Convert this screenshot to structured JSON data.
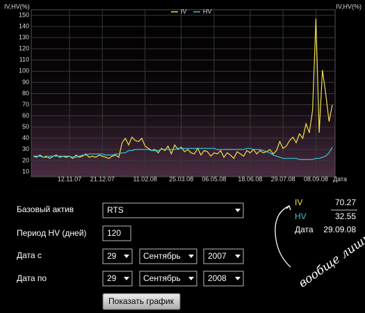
{
  "chart_data": {
    "type": "line",
    "y_label": "IV,HV(%)",
    "y2_label": "IV,HV(%)",
    "x_label": "Дата",
    "categories": [
      null,
      null,
      null,
      null,
      null,
      null,
      null,
      null,
      null,
      null,
      null,
      "12.11.07",
      null,
      null,
      null,
      null,
      null,
      null,
      null,
      null,
      null,
      "21.12.07",
      null,
      null,
      null,
      null,
      null,
      null,
      null,
      null,
      null,
      null,
      null,
      null,
      "11.02.08",
      null,
      null,
      null,
      null,
      null,
      null,
      null,
      null,
      null,
      null,
      "25.03.08",
      null,
      null,
      null,
      null,
      null,
      null,
      null,
      null,
      null,
      "06.05.08",
      null,
      null,
      null,
      null,
      null,
      null,
      null,
      null,
      null,
      null,
      "18.06.08",
      null,
      null,
      null,
      null,
      null,
      null,
      null,
      null,
      null,
      "29.07.08",
      null,
      null,
      null,
      null,
      null,
      null,
      null,
      null,
      null,
      "08.09.08",
      null,
      null,
      null,
      null,
      null
    ],
    "series": [
      {
        "name": "IV",
        "color": "#f2e24a",
        "values": [
          24,
          23,
          25,
          23,
          24,
          22,
          24,
          25,
          23,
          24,
          23,
          24,
          22,
          25,
          23,
          24,
          26,
          23,
          24,
          23,
          25,
          24,
          23,
          22,
          24,
          25,
          23,
          36,
          40,
          34,
          41,
          38,
          37,
          40,
          33,
          31,
          29,
          30,
          27,
          31,
          29,
          33,
          26,
          34,
          30,
          32,
          28,
          30,
          27,
          26,
          31,
          25,
          29,
          28,
          24,
          27,
          26,
          29,
          23,
          27,
          25,
          22,
          28,
          26,
          24,
          29,
          27,
          30,
          26,
          29,
          27,
          28,
          30,
          26,
          29,
          37,
          31,
          33,
          38,
          41,
          36,
          44,
          40,
          53,
          45,
          65,
          147,
          45,
          101,
          80,
          55,
          70
        ]
      },
      {
        "name": "HV",
        "color": "#35c8d8",
        "values": [
          24,
          24,
          24,
          23,
          23,
          24,
          24,
          24,
          24,
          24,
          24,
          24,
          23,
          23,
          24,
          25,
          25,
          26,
          26,
          26,
          26,
          26,
          25,
          25,
          25,
          26,
          26,
          27,
          27,
          29,
          29,
          30,
          30,
          30,
          30,
          30,
          29,
          29,
          29,
          30,
          30,
          30,
          30,
          30,
          31,
          31,
          31,
          31,
          31,
          31,
          31,
          31,
          31,
          31,
          31,
          31,
          30,
          30,
          30,
          30,
          30,
          30,
          30,
          30,
          30,
          31,
          31,
          30,
          30,
          30,
          29,
          28,
          27,
          25,
          24,
          23,
          22,
          22,
          22,
          22,
          22,
          21,
          21,
          21,
          21,
          21,
          22,
          22,
          23,
          24,
          27,
          32
        ]
      }
    ],
    "ylim": [
      10,
      150
    ],
    "yticks": [
      10,
      20,
      30,
      40,
      50,
      60,
      70,
      80,
      90,
      100,
      110,
      120,
      130,
      140,
      150
    ],
    "grid": true
  },
  "form": {
    "asset_label": "Базовый актив",
    "asset": "RTS",
    "period_label": "Период HV (дней)",
    "period": "120",
    "from_label": "Дата с",
    "from_day": "29",
    "from_month": "Сентябрь",
    "from_year": "2007",
    "to_label": "Дата по",
    "to_day": "29",
    "to_month": "Сентябрь",
    "to_year": "2008",
    "button": "Показать график"
  },
  "readout": {
    "iv_label": "IV",
    "iv": "70.27",
    "hv_label": "HV",
    "hv": "32.55",
    "date_label": "Дата",
    "date": "29.09.08"
  },
  "annotation": "вообще лишнее"
}
